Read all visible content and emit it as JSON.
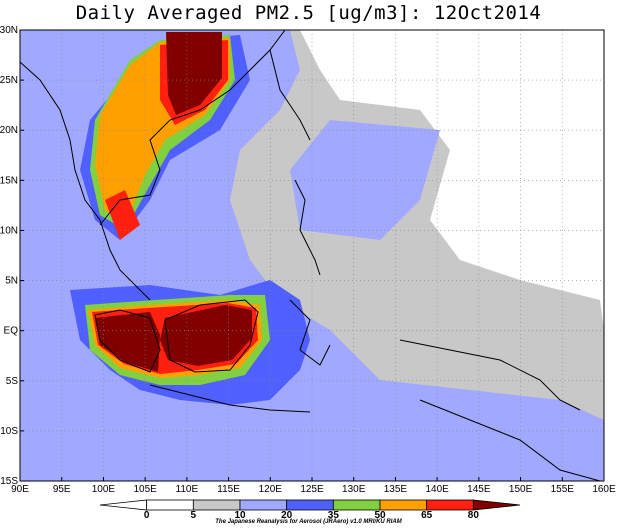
{
  "title": "Daily Averaged PM2.5 [ug/m3]: 12Oct2014",
  "y_ticks": [
    "30N",
    "25N",
    "20N",
    "15N",
    "10N",
    "5N",
    "EQ",
    "5S",
    "10S",
    "15S"
  ],
  "x_ticks": [
    "90E",
    "95E",
    "100E",
    "105E",
    "110E",
    "115E",
    "120E",
    "125E",
    "130E",
    "135E",
    "140E",
    "145E",
    "150E",
    "155E",
    "160E"
  ],
  "colorbar": {
    "levels": [
      "0",
      "5",
      "10",
      "20",
      "35",
      "50",
      "65",
      "80"
    ],
    "colors": [
      "#ffffff",
      "#ffffff",
      "#c8c8c8",
      "#a0a8ff",
      "#5060ff",
      "#80d040",
      "#ffa000",
      "#ff2010",
      "#800000"
    ]
  },
  "credit": "The Japanese Reanalysis for Aerosol (JRAero) v1.0 MRI/KU RIAM"
}
